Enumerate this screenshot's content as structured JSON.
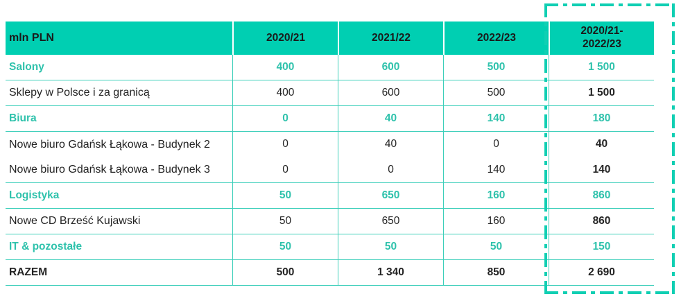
{
  "colors": {
    "accent": "#00CFB2",
    "teal_text": "#2FC2AC",
    "grid_line": "#3DCFBA",
    "header_text": "#1A1A1A",
    "body_text": "#232323",
    "background": "#FFFFFF",
    "highlight_border": "#10CFB3"
  },
  "table": {
    "unit_label": "mln PLN",
    "columns": [
      "2020/21",
      "2021/22",
      "2022/23",
      "2020/21-\n2022/23"
    ],
    "rows": [
      {
        "label": "Salony",
        "values": [
          "400",
          "600",
          "500",
          "1 500"
        ]
      },
      {
        "label": "Sklepy w Polsce i za granicą",
        "values": [
          "400",
          "600",
          "500",
          "1 500"
        ]
      },
      {
        "label": "Biura",
        "values": [
          "0",
          "40",
          "140",
          "180"
        ]
      },
      {
        "label": "Nowe biuro Gdańsk Łąkowa - Budynek 2",
        "values": [
          "0",
          "40",
          "0",
          "40"
        ]
      },
      {
        "label": "Nowe biuro Gdańsk Łąkowa - Budynek 3",
        "values": [
          "0",
          "0",
          "140",
          "140"
        ]
      },
      {
        "label": "Logistyka",
        "values": [
          "50",
          "650",
          "160",
          "860"
        ]
      },
      {
        "label": "Nowe CD Brześć Kujawski",
        "values": [
          "50",
          "650",
          "160",
          "860"
        ]
      },
      {
        "label": "IT & pozostałe",
        "values": [
          "50",
          "50",
          "50",
          "150"
        ]
      },
      {
        "label": "RAZEM",
        "values": [
          "500",
          "1 340",
          "850",
          "2 690"
        ]
      }
    ]
  },
  "chart_data": {
    "type": "table",
    "columns": [
      "mln PLN",
      "2020/21",
      "2021/22",
      "2022/23",
      "2020/21-2022/23"
    ],
    "rows": [
      [
        "Salony",
        400,
        600,
        500,
        1500
      ],
      [
        "Sklepy w Polsce i za granicą",
        400,
        600,
        500,
        1500
      ],
      [
        "Biura",
        0,
        40,
        140,
        180
      ],
      [
        "Nowe biuro Gdańsk Łąkowa - Budynek 2",
        0,
        40,
        0,
        40
      ],
      [
        "Nowe biuro Gdańsk Łąkowa - Budynek 3",
        0,
        0,
        140,
        140
      ],
      [
        "Logistyka",
        50,
        650,
        160,
        860
      ],
      [
        "Nowe CD Brześć Kujawski",
        50,
        650,
        160,
        860
      ],
      [
        "IT & pozostałe",
        50,
        50,
        50,
        150
      ],
      [
        "RAZEM",
        500,
        1340,
        850,
        2690
      ]
    ],
    "section_rows": [
      "Salony",
      "Biura",
      "Logistyka",
      "IT & pozostałe"
    ],
    "total_row": "RAZEM",
    "highlighted_column": "2020/21-2022/23"
  }
}
